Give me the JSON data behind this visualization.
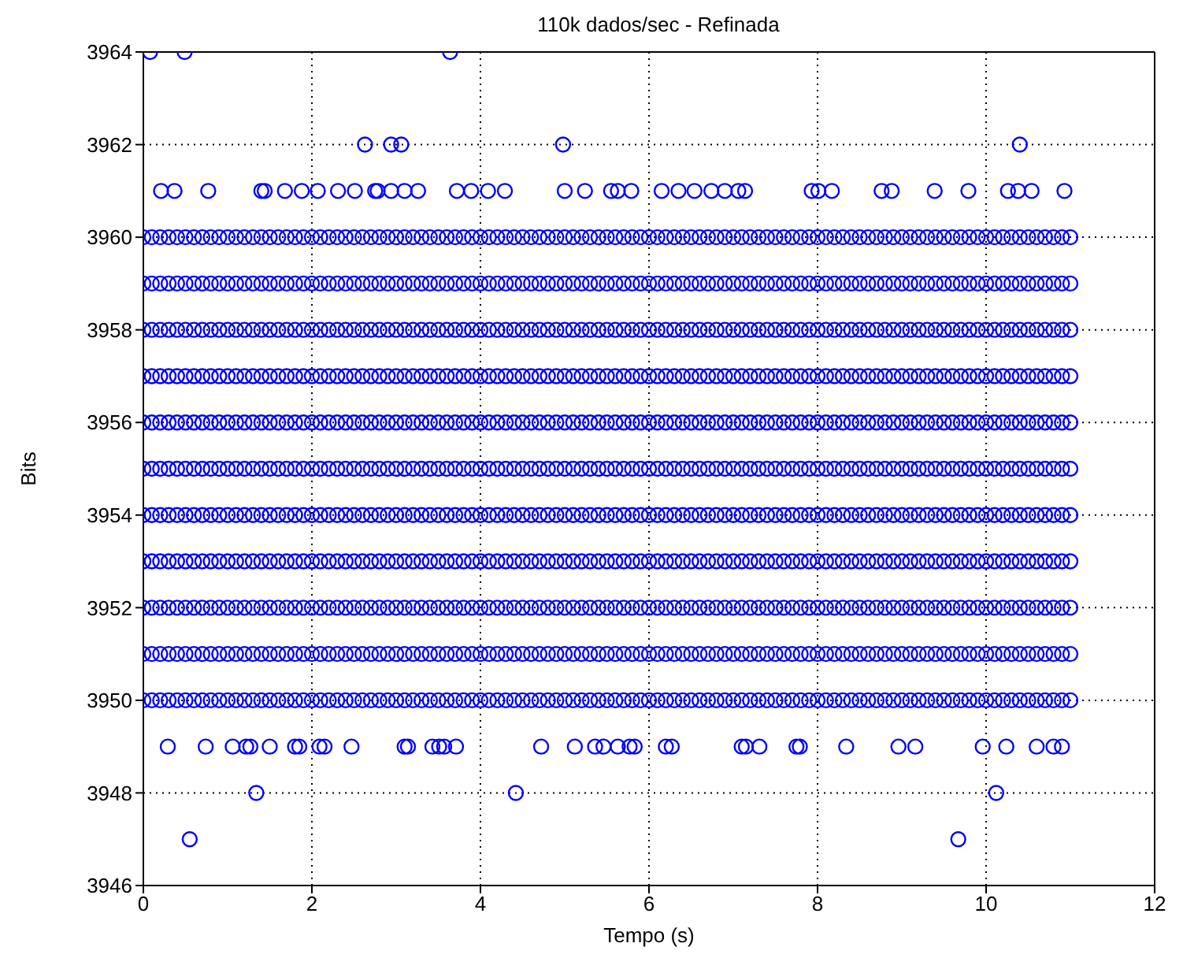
{
  "chart_data": {
    "type": "scatter",
    "title": "110k dados/sec - Refinada",
    "xlabel": "Tempo (s)",
    "ylabel": "Bits",
    "xlim": [
      0,
      12
    ],
    "xticks": [
      0,
      2,
      4,
      6,
      8,
      10,
      12
    ],
    "ylim": [
      3946,
      3964
    ],
    "yticks": [
      3946,
      3948,
      3950,
      3952,
      3954,
      3956,
      3958,
      3960,
      3962,
      3964
    ],
    "grid": true,
    "marker": "circle",
    "x": [
      0,
      0.1,
      0.2,
      0.3,
      0.4,
      0.5,
      0.6,
      0.7,
      0.8,
      0.9,
      1,
      1.1,
      1.2,
      1.3,
      1.4,
      1.5,
      1.6,
      1.7,
      1.8,
      1.9,
      2,
      2.1,
      2.2,
      2.3,
      2.4,
      2.5,
      2.6,
      2.7,
      2.8,
      2.9,
      3,
      3.1,
      3.2,
      3.3,
      3.4,
      3.5,
      3.6,
      3.7,
      3.8,
      3.9,
      4,
      4.1,
      4.2,
      4.3,
      4.4,
      4.5,
      4.6,
      4.7,
      4.8,
      4.9,
      5,
      5.1,
      5.2,
      5.3,
      5.4,
      5.5,
      5.6,
      5.7,
      5.8,
      5.9,
      6,
      6.1,
      6.2,
      6.3,
      6.4,
      6.5,
      6.6,
      6.7,
      6.8,
      6.9,
      7,
      7.1,
      7.2,
      7.3,
      7.4,
      7.5,
      7.6,
      7.7,
      7.8,
      7.9,
      8,
      8.1,
      8.2,
      8.3,
      8.4,
      8.5,
      8.6,
      8.7,
      8.8,
      8.9,
      9,
      9.1,
      9.2,
      9.3,
      9.4,
      9.5,
      9.6,
      9.7,
      9.8,
      9.9,
      10,
      10.1,
      10.2,
      10.3,
      10.4,
      10.5,
      10.6,
      10.7,
      10.8,
      10.9,
      11
    ],
    "series": [
      {
        "color": "#0000ff",
        "values": [
          3960,
          3960,
          3960,
          3960,
          3960,
          3960,
          3960,
          3960,
          3960,
          3960,
          3960,
          3960,
          3960,
          3960,
          3960,
          3960,
          3960,
          3960,
          3960,
          3960,
          3960,
          3960,
          3960,
          3960,
          3960,
          3960,
          3960,
          3960,
          3960,
          3960,
          3960,
          3960,
          3960,
          3960,
          3960,
          3960,
          3960,
          3960,
          3960,
          3960,
          3960,
          3960,
          3960,
          3960,
          3960,
          3960,
          3960,
          3960,
          3960,
          3960,
          3960,
          3960,
          3960,
          3960,
          3960,
          3960,
          3960,
          3960,
          3960,
          3960,
          3960,
          3960,
          3960,
          3960,
          3960,
          3960,
          3960,
          3960,
          3960,
          3960,
          3960,
          3960,
          3960,
          3960,
          3960,
          3960,
          3960,
          3960,
          3960,
          3960,
          3960,
          3960,
          3960,
          3960,
          3960,
          3960,
          3960,
          3960,
          3960,
          3960,
          3960,
          3960,
          3960,
          3960,
          3960,
          3960,
          3960,
          3960,
          3960,
          3960,
          3960,
          3960,
          3960,
          3960,
          3960,
          3960,
          3960,
          3960,
          3960,
          3960,
          3960
        ]
      },
      {
        "color": "#0000ff",
        "values": [
          3959,
          3959,
          3959,
          3959,
          3959,
          3959,
          3959,
          3959,
          3959,
          3959,
          3959,
          3959,
          3959,
          3959,
          3959,
          3959,
          3959,
          3959,
          3959,
          3959,
          3959,
          3959,
          3959,
          3959,
          3959,
          3959,
          3959,
          3959,
          3959,
          3959,
          3959,
          3959,
          3959,
          3959,
          3959,
          3959,
          3959,
          3959,
          3959,
          3959,
          3959,
          3959,
          3959,
          3959,
          3959,
          3959,
          3959,
          3959,
          3959,
          3959,
          3959,
          3959,
          3959,
          3959,
          3959,
          3959,
          3959,
          3959,
          3959,
          3959,
          3959,
          3959,
          3959,
          3959,
          3959,
          3959,
          3959,
          3959,
          3959,
          3959,
          3959,
          3959,
          3959,
          3959,
          3959,
          3959,
          3959,
          3959,
          3959,
          3959,
          3959,
          3959,
          3959,
          3959,
          3959,
          3959,
          3959,
          3959,
          3959,
          3959,
          3959,
          3959,
          3959,
          3959,
          3959,
          3959,
          3959,
          3959,
          3959,
          3959,
          3959,
          3959,
          3959,
          3959,
          3959,
          3959,
          3959,
          3959,
          3959,
          3959,
          3959
        ]
      },
      {
        "color": "#0000ff",
        "values": [
          3958,
          3958,
          3958,
          3958,
          3958,
          3958,
          3958,
          3958,
          3958,
          3958,
          3958,
          3958,
          3958,
          3958,
          3958,
          3958,
          3958,
          3958,
          3958,
          3958,
          3958,
          3958,
          3958,
          3958,
          3958,
          3958,
          3958,
          3958,
          3958,
          3958,
          3958,
          3958,
          3958,
          3958,
          3958,
          3958,
          3958,
          3958,
          3958,
          3958,
          3958,
          3958,
          3958,
          3958,
          3958,
          3958,
          3958,
          3958,
          3958,
          3958,
          3958,
          3958,
          3958,
          3958,
          3958,
          3958,
          3958,
          3958,
          3958,
          3958,
          3958,
          3958,
          3958,
          3958,
          3958,
          3958,
          3958,
          3958,
          3958,
          3958,
          3958,
          3958,
          3958,
          3958,
          3958,
          3958,
          3958,
          3958,
          3958,
          3958,
          3958,
          3958,
          3958,
          3958,
          3958,
          3958,
          3958,
          3958,
          3958,
          3958,
          3958,
          3958,
          3958,
          3958,
          3958,
          3958,
          3958,
          3958,
          3958,
          3958,
          3958,
          3958,
          3958,
          3958,
          3958,
          3958,
          3958,
          3958,
          3958,
          3958,
          3958
        ]
      },
      {
        "color": "#0000ff",
        "values": [
          3957,
          3957,
          3957,
          3957,
          3957,
          3957,
          3957,
          3957,
          3957,
          3957,
          3957,
          3957,
          3957,
          3957,
          3957,
          3957,
          3957,
          3957,
          3957,
          3957,
          3957,
          3957,
          3957,
          3957,
          3957,
          3957,
          3957,
          3957,
          3957,
          3957,
          3957,
          3957,
          3957,
          3957,
          3957,
          3957,
          3957,
          3957,
          3957,
          3957,
          3957,
          3957,
          3957,
          3957,
          3957,
          3957,
          3957,
          3957,
          3957,
          3957,
          3957,
          3957,
          3957,
          3957,
          3957,
          3957,
          3957,
          3957,
          3957,
          3957,
          3957,
          3957,
          3957,
          3957,
          3957,
          3957,
          3957,
          3957,
          3957,
          3957,
          3957,
          3957,
          3957,
          3957,
          3957,
          3957,
          3957,
          3957,
          3957,
          3957,
          3957,
          3957,
          3957,
          3957,
          3957,
          3957,
          3957,
          3957,
          3957,
          3957,
          3957,
          3957,
          3957,
          3957,
          3957,
          3957,
          3957,
          3957,
          3957,
          3957,
          3957,
          3957,
          3957,
          3957,
          3957,
          3957,
          3957,
          3957,
          3957,
          3957,
          3957
        ]
      },
      {
        "color": "#0000ff",
        "values": [
          3956,
          3956,
          3956,
          3956,
          3956,
          3956,
          3956,
          3956,
          3956,
          3956,
          3956,
          3956,
          3956,
          3956,
          3956,
          3956,
          3956,
          3956,
          3956,
          3956,
          3956,
          3956,
          3956,
          3956,
          3956,
          3956,
          3956,
          3956,
          3956,
          3956,
          3956,
          3956,
          3956,
          3956,
          3956,
          3956,
          3956,
          3956,
          3956,
          3956,
          3956,
          3956,
          3956,
          3956,
          3956,
          3956,
          3956,
          3956,
          3956,
          3956,
          3956,
          3956,
          3956,
          3956,
          3956,
          3956,
          3956,
          3956,
          3956,
          3956,
          3956,
          3956,
          3956,
          3956,
          3956,
          3956,
          3956,
          3956,
          3956,
          3956,
          3956,
          3956,
          3956,
          3956,
          3956,
          3956,
          3956,
          3956,
          3956,
          3956,
          3956,
          3956,
          3956,
          3956,
          3956,
          3956,
          3956,
          3956,
          3956,
          3956,
          3956,
          3956,
          3956,
          3956,
          3956,
          3956,
          3956,
          3956,
          3956,
          3956,
          3956,
          3956,
          3956,
          3956,
          3956,
          3956,
          3956,
          3956,
          3956,
          3956,
          3956
        ]
      },
      {
        "color": "#0000ff",
        "values": [
          3955,
          3955,
          3955,
          3955,
          3955,
          3955,
          3955,
          3955,
          3955,
          3955,
          3955,
          3955,
          3955,
          3955,
          3955,
          3955,
          3955,
          3955,
          3955,
          3955,
          3955,
          3955,
          3955,
          3955,
          3955,
          3955,
          3955,
          3955,
          3955,
          3955,
          3955,
          3955,
          3955,
          3955,
          3955,
          3955,
          3955,
          3955,
          3955,
          3955,
          3955,
          3955,
          3955,
          3955,
          3955,
          3955,
          3955,
          3955,
          3955,
          3955,
          3955,
          3955,
          3955,
          3955,
          3955,
          3955,
          3955,
          3955,
          3955,
          3955,
          3955,
          3955,
          3955,
          3955,
          3955,
          3955,
          3955,
          3955,
          3955,
          3955,
          3955,
          3955,
          3955,
          3955,
          3955,
          3955,
          3955,
          3955,
          3955,
          3955,
          3955,
          3955,
          3955,
          3955,
          3955,
          3955,
          3955,
          3955,
          3955,
          3955,
          3955,
          3955,
          3955,
          3955,
          3955,
          3955,
          3955,
          3955,
          3955,
          3955,
          3955,
          3955,
          3955,
          3955,
          3955,
          3955,
          3955,
          3955,
          3955,
          3955,
          3955
        ]
      },
      {
        "color": "#0000ff",
        "values": [
          3954,
          3954,
          3954,
          3954,
          3954,
          3954,
          3954,
          3954,
          3954,
          3954,
          3954,
          3954,
          3954,
          3954,
          3954,
          3954,
          3954,
          3954,
          3954,
          3954,
          3954,
          3954,
          3954,
          3954,
          3954,
          3954,
          3954,
          3954,
          3954,
          3954,
          3954,
          3954,
          3954,
          3954,
          3954,
          3954,
          3954,
          3954,
          3954,
          3954,
          3954,
          3954,
          3954,
          3954,
          3954,
          3954,
          3954,
          3954,
          3954,
          3954,
          3954,
          3954,
          3954,
          3954,
          3954,
          3954,
          3954,
          3954,
          3954,
          3954,
          3954,
          3954,
          3954,
          3954,
          3954,
          3954,
          3954,
          3954,
          3954,
          3954,
          3954,
          3954,
          3954,
          3954,
          3954,
          3954,
          3954,
          3954,
          3954,
          3954,
          3954,
          3954,
          3954,
          3954,
          3954,
          3954,
          3954,
          3954,
          3954,
          3954,
          3954,
          3954,
          3954,
          3954,
          3954,
          3954,
          3954,
          3954,
          3954,
          3954,
          3954,
          3954,
          3954,
          3954,
          3954,
          3954,
          3954,
          3954,
          3954,
          3954,
          3954
        ]
      },
      {
        "color": "#0000ff",
        "values": [
          3953,
          3953,
          3953,
          3953,
          3953,
          3953,
          3953,
          3953,
          3953,
          3953,
          3953,
          3953,
          3953,
          3953,
          3953,
          3953,
          3953,
          3953,
          3953,
          3953,
          3953,
          3953,
          3953,
          3953,
          3953,
          3953,
          3953,
          3953,
          3953,
          3953,
          3953,
          3953,
          3953,
          3953,
          3953,
          3953,
          3953,
          3953,
          3953,
          3953,
          3953,
          3953,
          3953,
          3953,
          3953,
          3953,
          3953,
          3953,
          3953,
          3953,
          3953,
          3953,
          3953,
          3953,
          3953,
          3953,
          3953,
          3953,
          3953,
          3953,
          3953,
          3953,
          3953,
          3953,
          3953,
          3953,
          3953,
          3953,
          3953,
          3953,
          3953,
          3953,
          3953,
          3953,
          3953,
          3953,
          3953,
          3953,
          3953,
          3953,
          3953,
          3953,
          3953,
          3953,
          3953,
          3953,
          3953,
          3953,
          3953,
          3953,
          3953,
          3953,
          3953,
          3953,
          3953,
          3953,
          3953,
          3953,
          3953,
          3953,
          3953,
          3953,
          3953,
          3953,
          3953,
          3953,
          3953,
          3953,
          3953,
          3953,
          3953
        ]
      },
      {
        "color": "#0000ff",
        "values": [
          3952,
          3952,
          3952,
          3952,
          3952,
          3952,
          3952,
          3952,
          3952,
          3952,
          3952,
          3952,
          3952,
          3952,
          3952,
          3952,
          3952,
          3952,
          3952,
          3952,
          3952,
          3952,
          3952,
          3952,
          3952,
          3952,
          3952,
          3952,
          3952,
          3952,
          3952,
          3952,
          3952,
          3952,
          3952,
          3952,
          3952,
          3952,
          3952,
          3952,
          3952,
          3952,
          3952,
          3952,
          3952,
          3952,
          3952,
          3952,
          3952,
          3952,
          3952,
          3952,
          3952,
          3952,
          3952,
          3952,
          3952,
          3952,
          3952,
          3952,
          3952,
          3952,
          3952,
          3952,
          3952,
          3952,
          3952,
          3952,
          3952,
          3952,
          3952,
          3952,
          3952,
          3952,
          3952,
          3952,
          3952,
          3952,
          3952,
          3952,
          3952,
          3952,
          3952,
          3952,
          3952,
          3952,
          3952,
          3952,
          3952,
          3952,
          3952,
          3952,
          3952,
          3952,
          3952,
          3952,
          3952,
          3952,
          3952,
          3952,
          3952,
          3952,
          3952,
          3952,
          3952,
          3952,
          3952,
          3952,
          3952,
          3952,
          3952
        ]
      },
      {
        "color": "#0000ff",
        "values": [
          3951,
          3951,
          3951,
          3951,
          3951,
          3951,
          3951,
          3951,
          3951,
          3951,
          3951,
          3951,
          3951,
          3951,
          3951,
          3951,
          3951,
          3951,
          3951,
          3951,
          3951,
          3951,
          3951,
          3951,
          3951,
          3951,
          3951,
          3951,
          3951,
          3951,
          3951,
          3951,
          3951,
          3951,
          3951,
          3951,
          3951,
          3951,
          3951,
          3951,
          3951,
          3951,
          3951,
          3951,
          3951,
          3951,
          3951,
          3951,
          3951,
          3951,
          3951,
          3951,
          3951,
          3951,
          3951,
          3951,
          3951,
          3951,
          3951,
          3951,
          3951,
          3951,
          3951,
          3951,
          3951,
          3951,
          3951,
          3951,
          3951,
          3951,
          3951,
          3951,
          3951,
          3951,
          3951,
          3951,
          3951,
          3951,
          3951,
          3951,
          3951,
          3951,
          3951,
          3951,
          3951,
          3951,
          3951,
          3951,
          3951,
          3951,
          3951,
          3951,
          3951,
          3951,
          3951,
          3951,
          3951,
          3951,
          3951,
          3951,
          3951,
          3951,
          3951,
          3951,
          3951,
          3951,
          3951,
          3951,
          3951,
          3951,
          3951
        ]
      },
      {
        "color": "#0000ff",
        "values": [
          3950,
          3950,
          3950,
          3950,
          3950,
          3950,
          3950,
          3950,
          3950,
          3950,
          3950,
          3950,
          3950,
          3950,
          3950,
          3950,
          3950,
          3950,
          3950,
          3950,
          3950,
          3950,
          3950,
          3950,
          3950,
          3950,
          3950,
          3950,
          3950,
          3950,
          3950,
          3950,
          3950,
          3950,
          3950,
          3950,
          3950,
          3950,
          3950,
          3950,
          3950,
          3950,
          3950,
          3950,
          3950,
          3950,
          3950,
          3950,
          3950,
          3950,
          3950,
          3950,
          3950,
          3950,
          3950,
          3950,
          3950,
          3950,
          3950,
          3950,
          3950,
          3950,
          3950,
          3950,
          3950,
          3950,
          3950,
          3950,
          3950,
          3950,
          3950,
          3950,
          3950,
          3950,
          3950,
          3950,
          3950,
          3950,
          3950,
          3950,
          3950,
          3950,
          3950,
          3950,
          3950,
          3950,
          3950,
          3950,
          3950,
          3950,
          3950,
          3950,
          3950,
          3950,
          3950,
          3950,
          3950,
          3950,
          3950,
          3950,
          3950,
          3950,
          3950,
          3950,
          3950,
          3950,
          3950,
          3950,
          3950,
          3950,
          3950
        ]
      },
      {
        "color": "#0000ff",
        "x": [
          0.08,
          0.49,
          3.64
        ],
        "values": [
          3964,
          3964,
          3964
        ]
      },
      {
        "color": "#0000ff",
        "x": [
          2.63,
          2.94,
          3.06,
          4.98,
          10.4
        ],
        "values": [
          3962,
          3962,
          3962,
          3962,
          3962
        ]
      },
      {
        "color": "#0000ff",
        "x": [
          0.21,
          0.37,
          0.77,
          1.4,
          1.44,
          1.68,
          1.88,
          2.07,
          2.31,
          2.51,
          2.75,
          2.78,
          2.94,
          3.1,
          3.26,
          3.72,
          3.89,
          4.09,
          4.29,
          5,
          5.24,
          5.55,
          5.63,
          5.79,
          6.15,
          6.35,
          6.54,
          6.74,
          6.9,
          7.06,
          7.14,
          7.93,
          8.01,
          8.17,
          8.76,
          8.88,
          9.39,
          9.79,
          10.26,
          10.38,
          10.54,
          10.93
        ],
        "values": [
          3961,
          3961,
          3961,
          3961,
          3961,
          3961,
          3961,
          3961,
          3961,
          3961,
          3961,
          3961,
          3961,
          3961,
          3961,
          3961,
          3961,
          3961,
          3961,
          3961,
          3961,
          3961,
          3961,
          3961,
          3961,
          3961,
          3961,
          3961,
          3961,
          3961,
          3961,
          3961,
          3961,
          3961,
          3961,
          3961,
          3961,
          3961,
          3961,
          3961,
          3961,
          3961
        ]
      },
      {
        "color": "#0000ff",
        "x": [
          0.29,
          0.74,
          1.06,
          1.22,
          1.27,
          1.5,
          1.8,
          1.85,
          2.09,
          2.15,
          2.47,
          3.1,
          3.14,
          3.43,
          3.51,
          3.57,
          3.71,
          4.72,
          5.12,
          5.36,
          5.46,
          5.63,
          5.77,
          5.83,
          6.2,
          6.27,
          7.1,
          7.15,
          7.31,
          7.75,
          7.79,
          8.34,
          8.96,
          9.16,
          9.96,
          10.24,
          10.6,
          10.8,
          10.9
        ],
        "values": [
          3949,
          3949,
          3949,
          3949,
          3949,
          3949,
          3949,
          3949,
          3949,
          3949,
          3949,
          3949,
          3949,
          3949,
          3949,
          3949,
          3949,
          3949,
          3949,
          3949,
          3949,
          3949,
          3949,
          3949,
          3949,
          3949,
          3949,
          3949,
          3949,
          3949,
          3949,
          3949,
          3949,
          3949,
          3949,
          3949,
          3949,
          3949,
          3949
        ]
      },
      {
        "color": "#0000ff",
        "x": [
          1.34,
          4.42,
          10.12
        ],
        "values": [
          3948,
          3948,
          3948
        ]
      },
      {
        "color": "#0000ff",
        "x": [
          0.55,
          9.67
        ],
        "values": [
          3947,
          3947
        ]
      }
    ]
  }
}
